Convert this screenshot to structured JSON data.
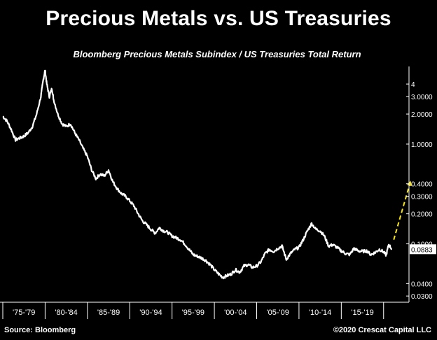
{
  "header": {
    "title": "Precious Metals vs. US Treasuries",
    "subtitle": "Bloomberg Precious Metals Subindex / US Treasuries Total Return"
  },
  "footer": {
    "source": "Source: Bloomberg",
    "copyright": "©2020 Crescat Capital LLC"
  },
  "colors": {
    "background": "#000000",
    "line": "#ffffff",
    "projection": "#f5e21b"
  },
  "chart_data": {
    "type": "line",
    "title": "Precious Metals vs. US Treasuries",
    "subtitle": "Bloomberg Precious Metals Subindex / US Treasuries Total Return",
    "yscale": "log",
    "ylim": [
      0.026,
      6.0
    ],
    "xlim": [
      1975,
      2023
    ],
    "y_ticks": [
      {
        "value": 4,
        "label": "4"
      },
      {
        "value": 3,
        "label": "3.0000"
      },
      {
        "value": 2,
        "label": "2.0000"
      },
      {
        "value": 1,
        "label": "1.0000"
      },
      {
        "value": 0.4,
        "label": "0.4000"
      },
      {
        "value": 0.3,
        "label": "0.3000"
      },
      {
        "value": 0.2,
        "label": "0.2000"
      },
      {
        "value": 0.1,
        "label": "0.1000"
      },
      {
        "value": 0.04,
        "label": "0.0400"
      },
      {
        "value": 0.03,
        "label": "0.0300"
      }
    ],
    "x_categories": [
      "'75-'79",
      "'80-'84",
      "'85-'89",
      "'90-'94",
      "'95-'99",
      "'00-'04",
      "'05-'09",
      "'10-'14",
      "'15-'19"
    ],
    "last_value_label": "0.0883",
    "series": [
      {
        "points": [
          [
            1975.0,
            1.9
          ],
          [
            1975.5,
            1.7
          ],
          [
            1976.0,
            1.4
          ],
          [
            1976.5,
            1.1
          ],
          [
            1977.0,
            1.15
          ],
          [
            1977.5,
            1.2
          ],
          [
            1978.0,
            1.3
          ],
          [
            1978.5,
            1.5
          ],
          [
            1979.0,
            2.0
          ],
          [
            1979.5,
            3.0
          ],
          [
            1979.8,
            4.5
          ],
          [
            1980.0,
            5.5
          ],
          [
            1980.2,
            4.0
          ],
          [
            1980.5,
            3.0
          ],
          [
            1980.8,
            3.6
          ],
          [
            1981.0,
            2.8
          ],
          [
            1981.5,
            2.0
          ],
          [
            1982.0,
            1.6
          ],
          [
            1982.5,
            1.5
          ],
          [
            1983.0,
            1.6
          ],
          [
            1983.5,
            1.3
          ],
          [
            1984.0,
            1.1
          ],
          [
            1984.5,
            0.9
          ],
          [
            1985.0,
            0.75
          ],
          [
            1985.5,
            0.55
          ],
          [
            1986.0,
            0.45
          ],
          [
            1986.5,
            0.5
          ],
          [
            1987.0,
            0.48
          ],
          [
            1987.5,
            0.55
          ],
          [
            1988.0,
            0.42
          ],
          [
            1988.5,
            0.36
          ],
          [
            1989.0,
            0.32
          ],
          [
            1989.5,
            0.3
          ],
          [
            1990.0,
            0.27
          ],
          [
            1990.5,
            0.24
          ],
          [
            1991.0,
            0.2
          ],
          [
            1991.5,
            0.17
          ],
          [
            1992.0,
            0.155
          ],
          [
            1992.5,
            0.14
          ],
          [
            1993.0,
            0.128
          ],
          [
            1993.5,
            0.145
          ],
          [
            1994.0,
            0.135
          ],
          [
            1994.5,
            0.13
          ],
          [
            1995.0,
            0.12
          ],
          [
            1995.5,
            0.115
          ],
          [
            1996.0,
            0.11
          ],
          [
            1996.5,
            0.1
          ],
          [
            1997.0,
            0.088
          ],
          [
            1997.5,
            0.078
          ],
          [
            1998.0,
            0.075
          ],
          [
            1998.5,
            0.072
          ],
          [
            1999.0,
            0.068
          ],
          [
            1999.5,
            0.062
          ],
          [
            2000.0,
            0.055
          ],
          [
            2000.5,
            0.05
          ],
          [
            2001.0,
            0.046
          ],
          [
            2001.5,
            0.048
          ],
          [
            2002.0,
            0.05
          ],
          [
            2002.5,
            0.055
          ],
          [
            2003.0,
            0.052
          ],
          [
            2003.5,
            0.06
          ],
          [
            2004.0,
            0.062
          ],
          [
            2004.5,
            0.058
          ],
          [
            2005.0,
            0.06
          ],
          [
            2005.5,
            0.066
          ],
          [
            2006.0,
            0.08
          ],
          [
            2006.5,
            0.088
          ],
          [
            2007.0,
            0.084
          ],
          [
            2007.5,
            0.09
          ],
          [
            2008.0,
            0.095
          ],
          [
            2008.5,
            0.07
          ],
          [
            2009.0,
            0.08
          ],
          [
            2009.5,
            0.088
          ],
          [
            2010.0,
            0.092
          ],
          [
            2010.5,
            0.11
          ],
          [
            2011.0,
            0.135
          ],
          [
            2011.5,
            0.16
          ],
          [
            2012.0,
            0.14
          ],
          [
            2012.5,
            0.135
          ],
          [
            2013.0,
            0.12
          ],
          [
            2013.5,
            0.095
          ],
          [
            2014.0,
            0.098
          ],
          [
            2014.5,
            0.092
          ],
          [
            2015.0,
            0.085
          ],
          [
            2015.5,
            0.08
          ],
          [
            2016.0,
            0.078
          ],
          [
            2016.5,
            0.09
          ],
          [
            2017.0,
            0.085
          ],
          [
            2017.5,
            0.084
          ],
          [
            2018.0,
            0.085
          ],
          [
            2018.5,
            0.078
          ],
          [
            2019.0,
            0.082
          ],
          [
            2019.5,
            0.088
          ],
          [
            2020.0,
            0.083
          ],
          [
            2020.3,
            0.077
          ],
          [
            2020.6,
            0.098
          ],
          [
            2021.0,
            0.0883
          ]
        ]
      }
    ],
    "projection": {
      "from": [
        2021.2,
        0.11
      ],
      "to": [
        2023.2,
        0.43
      ]
    }
  }
}
